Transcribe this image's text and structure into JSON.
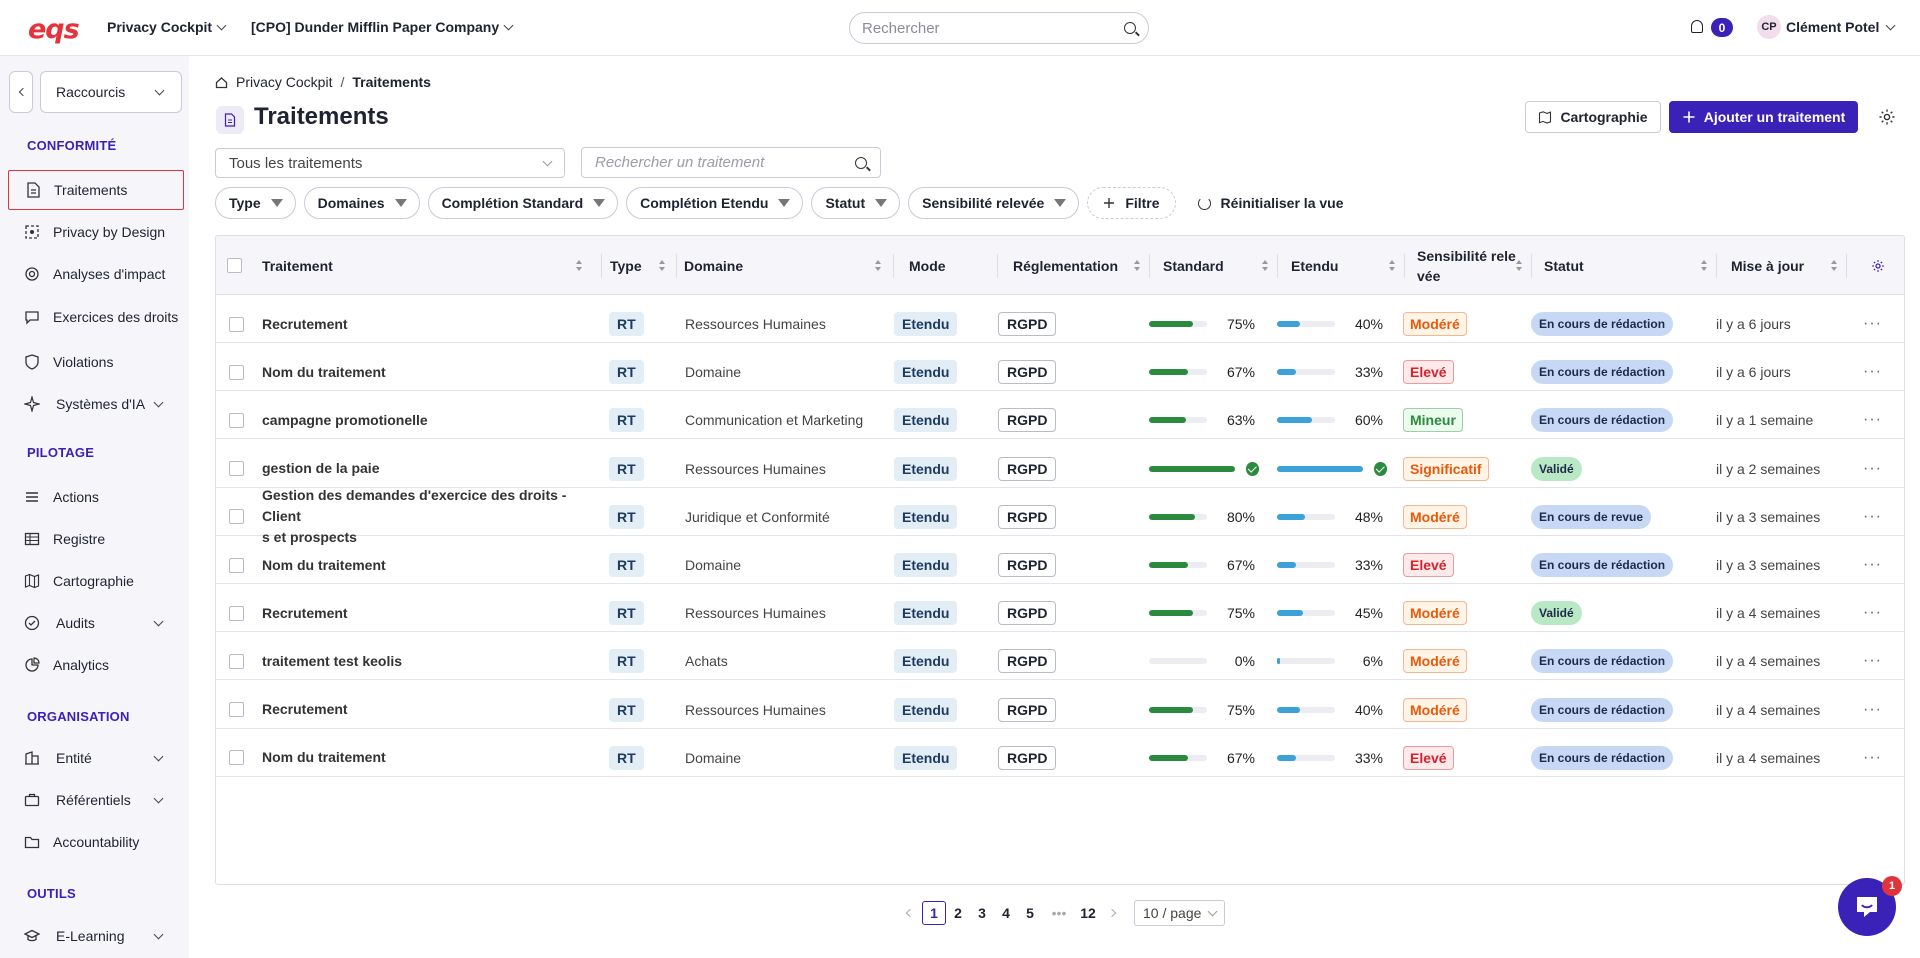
{
  "topbar": {
    "logo": "eqs",
    "product": "Privacy Cockpit",
    "organization": "[CPO] Dunder Mifflin Paper Company",
    "search_placeholder": "Rechercher",
    "notifications_count": "0",
    "user_initials": "CP",
    "user_name": "Clément Potel"
  },
  "sidebar": {
    "shortcut_label": "Raccourcis",
    "sections": {
      "conformite": "CONFORMITÉ",
      "pilotage": "PILOTAGE",
      "organisation": "ORGANISATION",
      "outils": "OUTILS"
    },
    "items": {
      "traitements": "Traitements",
      "privacy_by_design": "Privacy by Design",
      "analyses": "Analyses d'impact",
      "exercices": "Exercices des droits",
      "violations": "Violations",
      "systemes_ia": "Systèmes d'IA",
      "actions": "Actions",
      "registre": "Registre",
      "cartographie": "Cartographie",
      "audits": "Audits",
      "analytics": "Analytics",
      "entite": "Entité",
      "referentiels": "Référentiels",
      "accountability": "Accountability",
      "elearning": "E-Learning"
    }
  },
  "breadcrumb": {
    "root": "Privacy Cockpit",
    "separator": "/",
    "current": "Traitements"
  },
  "page": {
    "title": "Traitements",
    "carto_button": "Cartographie",
    "add_button": "Ajouter un traitement",
    "view_select": "Tous les traitements",
    "search_placeholder": "Rechercher un traitement"
  },
  "filters": {
    "type": "Type",
    "domaines": "Domaines",
    "completion_standard": "Complétion Standard",
    "completion_etendu": "Complétion Etendu",
    "statut": "Statut",
    "sensibilite": "Sensibilité relevée",
    "add_filter": "Filtre",
    "reset": "Réinitialiser la vue"
  },
  "table": {
    "headers": {
      "traitement": "Traitement",
      "type": "Type",
      "domaine": "Domaine",
      "mode": "Mode",
      "reglementation": "Réglementation",
      "standard": "Standard",
      "etendu": "Etendu",
      "sensibilite_1": "Sensibilité rele",
      "sensibilite_2": "vée",
      "statut": "Statut",
      "maj": "Mise à jour"
    },
    "rows": [
      {
        "name": "Recrutement",
        "type": "RT",
        "domain": "Ressources Humaines",
        "mode": "Etendu",
        "reg": "RGPD",
        "std": 75,
        "std_label": "75%",
        "ext": 40,
        "ext_label": "40%",
        "sens": "Modéré",
        "status": "En cours de rédaction",
        "updated": "il y a 6 jours"
      },
      {
        "name": "Nom du traitement",
        "type": "RT",
        "domain": "Domaine",
        "mode": "Etendu",
        "reg": "RGPD",
        "std": 67,
        "std_label": "67%",
        "ext": 33,
        "ext_label": "33%",
        "sens": "Elevé",
        "status": "En cours de rédaction",
        "updated": "il y a 6 jours"
      },
      {
        "name": "campagne promotionelle",
        "type": "RT",
        "domain": "Communication et Marketing",
        "mode": "Etendu",
        "reg": "RGPD",
        "std": 63,
        "std_label": "63%",
        "ext": 60,
        "ext_label": "60%",
        "sens": "Mineur",
        "status": "En cours de rédaction",
        "updated": "il y a 1 semaine"
      },
      {
        "name": "gestion de la paie",
        "type": "RT",
        "domain": "Ressources Humaines",
        "mode": "Etendu",
        "reg": "RGPD",
        "std": 100,
        "std_label": "",
        "ext": 100,
        "ext_label": "",
        "sens": "Significatif",
        "status": "Validé",
        "updated": "il y a 2 semaines"
      },
      {
        "name": "Gestion des demandes d'exercice des droits - Clients et prospects",
        "name_line1": "Gestion des demandes d'exercice des droits - Client",
        "name_line2": "s et prospects",
        "type": "RT",
        "domain": "Juridique et Conformité",
        "mode": "Etendu",
        "reg": "RGPD",
        "std": 80,
        "std_label": "80%",
        "ext": 48,
        "ext_label": "48%",
        "sens": "Modéré",
        "status": "En cours de revue",
        "updated": "il y a 3 semaines"
      },
      {
        "name": "Nom du traitement",
        "type": "RT",
        "domain": "Domaine",
        "mode": "Etendu",
        "reg": "RGPD",
        "std": 67,
        "std_label": "67%",
        "ext": 33,
        "ext_label": "33%",
        "sens": "Elevé",
        "status": "En cours de rédaction",
        "updated": "il y a 3 semaines"
      },
      {
        "name": "Recrutement",
        "type": "RT",
        "domain": "Ressources Humaines",
        "mode": "Etendu",
        "reg": "RGPD",
        "std": 75,
        "std_label": "75%",
        "ext": 45,
        "ext_label": "45%",
        "sens": "Modéré",
        "status": "Validé",
        "updated": "il y a 4 semaines"
      },
      {
        "name": "traitement test keolis",
        "type": "RT",
        "domain": "Achats",
        "mode": "Etendu",
        "reg": "RGPD",
        "std": 0,
        "std_label": "0%",
        "ext": 6,
        "ext_label": "6%",
        "sens": "Modéré",
        "status": "En cours de rédaction",
        "updated": "il y a 4 semaines"
      },
      {
        "name": "Recrutement",
        "type": "RT",
        "domain": "Ressources Humaines",
        "mode": "Etendu",
        "reg": "RGPD",
        "std": 75,
        "std_label": "75%",
        "ext": 40,
        "ext_label": "40%",
        "sens": "Modéré",
        "status": "En cours de rédaction",
        "updated": "il y a 4 semaines"
      },
      {
        "name": "Nom du traitement",
        "type": "RT",
        "domain": "Domaine",
        "mode": "Etendu",
        "reg": "RGPD",
        "std": 67,
        "std_label": "67%",
        "ext": 33,
        "ext_label": "33%",
        "sens": "Elevé",
        "status": "En cours de rédaction",
        "updated": "il y a 4 semaines"
      }
    ]
  },
  "pagination": {
    "pages": [
      "1",
      "2",
      "3",
      "4",
      "5",
      "•••",
      "12"
    ],
    "current": "1",
    "page_size": "10 / page"
  },
  "chat": {
    "badge": "1"
  },
  "colors": {
    "brand": "#3a22b8",
    "logo": "#e6323c",
    "standard_bar": "#2b8a3e",
    "extended_bar": "#3ba1d6",
    "sens_modere": "#e8590c",
    "sens_eleve": "#d6222e",
    "sens_mineur": "#2b8a3e",
    "sens_significatif": "#e8590c",
    "status_redaction": "#c7d8f4",
    "status_revue": "#c7d8f4",
    "status_valide": "#b9e9c4"
  }
}
